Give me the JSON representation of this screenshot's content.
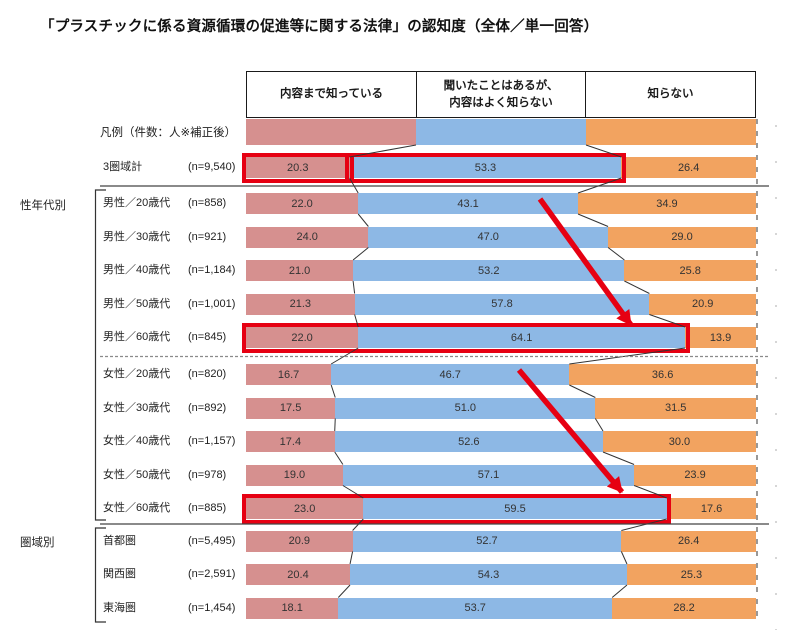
{
  "title": "「プラスチックに係る資源循環の促進等に関する法律」の認知度（全体／単一回答）",
  "chart_data": {
    "type": "bar",
    "subtype": "horizontal-stacked-100pct",
    "title": "「プラスチックに係る資源循環の促進等に関する法律」の認知度（全体／単一回答）",
    "unit": "%",
    "xlim": [
      0,
      100
    ],
    "legend_row_label": "凡例（件数：人※補正後）",
    "header": [
      "内容まで知っている",
      "聞いたことはあるが、内容はよく知らない",
      "知らない"
    ],
    "header_lines": [
      [
        "内容まで知っている"
      ],
      [
        "聞いたことはあるが、",
        "内容はよく知らない"
      ],
      [
        "知らない"
      ]
    ],
    "colors": [
      "#d6908f",
      "#8db8e5",
      "#f2a360"
    ],
    "group_labels": [
      "性年代別",
      "圏域別"
    ],
    "rows": [
      {
        "group": "",
        "label": "3圏域計",
        "n": "(n=9,540)",
        "values": [
          20.3,
          53.3,
          26.4
        ]
      },
      {
        "group": "性年代別",
        "label": "男性／20歳代",
        "n": "(n=858)",
        "values": [
          22.0,
          43.1,
          34.9
        ]
      },
      {
        "group": "性年代別",
        "label": "男性／30歳代",
        "n": "(n=921)",
        "values": [
          24.0,
          47.0,
          29.0
        ]
      },
      {
        "group": "性年代別",
        "label": "男性／40歳代",
        "n": "(n=1,184)",
        "values": [
          21.0,
          53.2,
          25.8
        ]
      },
      {
        "group": "性年代別",
        "label": "男性／50歳代",
        "n": "(n=1,001)",
        "values": [
          21.3,
          57.8,
          20.9
        ]
      },
      {
        "group": "性年代別",
        "label": "男性／60歳代",
        "n": "(n=845)",
        "values": [
          22.0,
          64.1,
          13.9
        ]
      },
      {
        "group": "性年代別",
        "label": "女性／20歳代",
        "n": "(n=820)",
        "values": [
          16.7,
          46.7,
          36.6
        ]
      },
      {
        "group": "性年代別",
        "label": "女性／30歳代",
        "n": "(n=892)",
        "values": [
          17.5,
          51.0,
          31.5
        ]
      },
      {
        "group": "性年代別",
        "label": "女性／40歳代",
        "n": "(n=1,157)",
        "values": [
          17.4,
          52.6,
          30.0
        ]
      },
      {
        "group": "性年代別",
        "label": "女性／50歳代",
        "n": "(n=978)",
        "values": [
          19.0,
          57.1,
          23.9
        ]
      },
      {
        "group": "性年代別",
        "label": "女性／60歳代",
        "n": "(n=885)",
        "values": [
          23.0,
          59.5,
          17.6
        ]
      },
      {
        "group": "圏域別",
        "label": "首都圏",
        "n": "(n=5,495)",
        "values": [
          20.9,
          52.7,
          26.4
        ]
      },
      {
        "group": "圏域別",
        "label": "関西圏",
        "n": "(n=2,591)",
        "values": [
          20.4,
          54.3,
          25.3
        ]
      },
      {
        "group": "圏域別",
        "label": "東海圏",
        "n": "(n=1,454)",
        "values": [
          18.1,
          53.7,
          28.2
        ]
      }
    ],
    "annotations": {
      "highlight_color": "#e60012",
      "boxes": [
        {
          "row_index": 0,
          "seg_from": 0,
          "seg_to": 0
        },
        {
          "row_index": 0,
          "seg_from": 1,
          "seg_to": 1
        },
        {
          "row_index": 5,
          "seg_from": 0,
          "seg_to": 1
        },
        {
          "row_index": 10,
          "seg_from": 0,
          "seg_to": 1
        }
      ],
      "arrows": [
        {
          "from_row_index": 1,
          "to_row_index": 5
        },
        {
          "from_row_index": 6,
          "to_row_index": 10
        }
      ]
    }
  }
}
